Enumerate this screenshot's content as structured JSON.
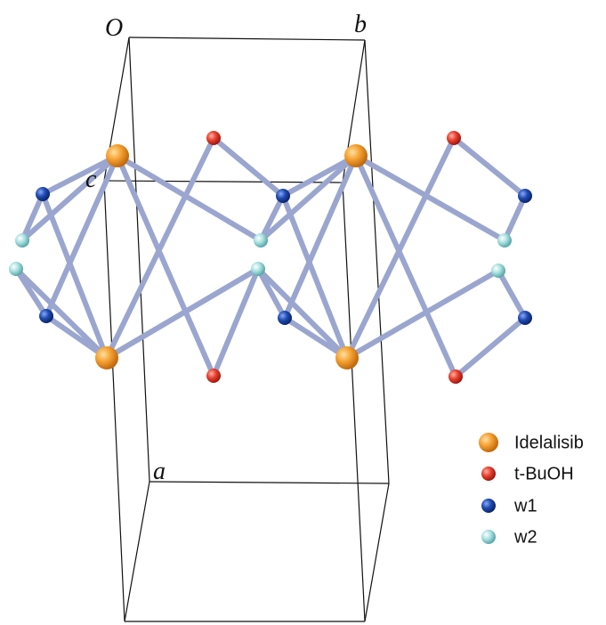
{
  "axes": {
    "origin": "O",
    "b": "b",
    "c": "c",
    "a": "a"
  },
  "legend": [
    {
      "label": "Idelalisib"
    },
    {
      "label": "t-BuOH"
    },
    {
      "label": "w1"
    },
    {
      "label": "w2"
    }
  ]
}
